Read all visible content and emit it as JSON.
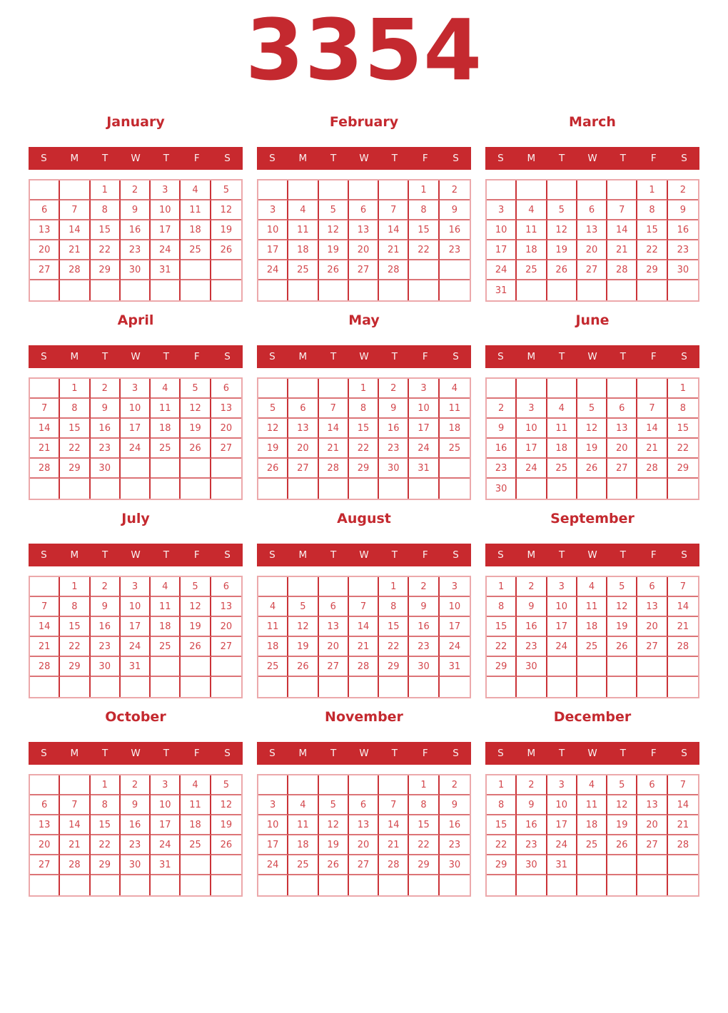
{
  "year": "3354",
  "weekdays": [
    "S",
    "M",
    "T",
    "W",
    "T",
    "F",
    "S"
  ],
  "colors": {
    "accent_red": "#c4292f",
    "header_band_bg": "#c8292e",
    "header_letter": "#faf3f3",
    "day_number": "#d3474c",
    "grid_line_vertical": "#cb3338",
    "grid_line_horizontal": "#dc7477",
    "grid_outer_border": "#eca9ab",
    "page_bg": "#ffffff"
  },
  "months": [
    {
      "name": "January",
      "cells": [
        "",
        "",
        "1",
        "2",
        "3",
        "4",
        "5",
        "6",
        "7",
        "8",
        "9",
        "10",
        "11",
        "12",
        "13",
        "14",
        "15",
        "16",
        "17",
        "18",
        "19",
        "20",
        "21",
        "22",
        "23",
        "24",
        "25",
        "26",
        "27",
        "28",
        "29",
        "30",
        "31",
        "",
        "",
        "",
        "",
        "",
        "",
        "",
        "",
        ""
      ]
    },
    {
      "name": "February",
      "cells": [
        "",
        "",
        "",
        "",
        "",
        "1",
        "2",
        "3",
        "4",
        "5",
        "6",
        "7",
        "8",
        "9",
        "10",
        "11",
        "12",
        "13",
        "14",
        "15",
        "16",
        "17",
        "18",
        "19",
        "20",
        "21",
        "22",
        "23",
        "24",
        "25",
        "26",
        "27",
        "28",
        "",
        "",
        "",
        "",
        "",
        "",
        "",
        "",
        ""
      ]
    },
    {
      "name": "March",
      "cells": [
        "",
        "",
        "",
        "",
        "",
        "1",
        "2",
        "3",
        "4",
        "5",
        "6",
        "7",
        "8",
        "9",
        "10",
        "11",
        "12",
        "13",
        "14",
        "15",
        "16",
        "17",
        "18",
        "19",
        "20",
        "21",
        "22",
        "23",
        "24",
        "25",
        "26",
        "27",
        "28",
        "29",
        "30",
        "31",
        "",
        "",
        "",
        "",
        "",
        ""
      ]
    },
    {
      "name": "April",
      "cells": [
        "",
        "1",
        "2",
        "3",
        "4",
        "5",
        "6",
        "7",
        "8",
        "9",
        "10",
        "11",
        "12",
        "13",
        "14",
        "15",
        "16",
        "17",
        "18",
        "19",
        "20",
        "21",
        "22",
        "23",
        "24",
        "25",
        "26",
        "27",
        "28",
        "29",
        "30",
        "",
        "",
        "",
        "",
        "",
        "",
        "",
        "",
        "",
        "",
        ""
      ]
    },
    {
      "name": "May",
      "cells": [
        "",
        "",
        "",
        "1",
        "2",
        "3",
        "4",
        "5",
        "6",
        "7",
        "8",
        "9",
        "10",
        "11",
        "12",
        "13",
        "14",
        "15",
        "16",
        "17",
        "18",
        "19",
        "20",
        "21",
        "22",
        "23",
        "24",
        "25",
        "26",
        "27",
        "28",
        "29",
        "30",
        "31",
        "",
        "",
        "",
        "",
        "",
        "",
        "",
        ""
      ]
    },
    {
      "name": "June",
      "cells": [
        "",
        "",
        "",
        "",
        "",
        "",
        "1",
        "2",
        "3",
        "4",
        "5",
        "6",
        "7",
        "8",
        "9",
        "10",
        "11",
        "12",
        "13",
        "14",
        "15",
        "16",
        "17",
        "18",
        "19",
        "20",
        "21",
        "22",
        "23",
        "24",
        "25",
        "26",
        "27",
        "28",
        "29",
        "30",
        "",
        "",
        "",
        "",
        "",
        ""
      ]
    },
    {
      "name": "July",
      "cells": [
        "",
        "1",
        "2",
        "3",
        "4",
        "5",
        "6",
        "7",
        "8",
        "9",
        "10",
        "11",
        "12",
        "13",
        "14",
        "15",
        "16",
        "17",
        "18",
        "19",
        "20",
        "21",
        "22",
        "23",
        "24",
        "25",
        "26",
        "27",
        "28",
        "29",
        "30",
        "31",
        "",
        "",
        "",
        "",
        "",
        "",
        "",
        "",
        "",
        ""
      ]
    },
    {
      "name": "August",
      "cells": [
        "",
        "",
        "",
        "",
        "1",
        "2",
        "3",
        "4",
        "5",
        "6",
        "7",
        "8",
        "9",
        "10",
        "11",
        "12",
        "13",
        "14",
        "15",
        "16",
        "17",
        "18",
        "19",
        "20",
        "21",
        "22",
        "23",
        "24",
        "25",
        "26",
        "27",
        "28",
        "29",
        "30",
        "31",
        "",
        "",
        "",
        "",
        "",
        "",
        ""
      ]
    },
    {
      "name": "September",
      "cells": [
        "1",
        "2",
        "3",
        "4",
        "5",
        "6",
        "7",
        "8",
        "9",
        "10",
        "11",
        "12",
        "13",
        "14",
        "15",
        "16",
        "17",
        "18",
        "19",
        "20",
        "21",
        "22",
        "23",
        "24",
        "25",
        "26",
        "27",
        "28",
        "29",
        "30",
        "",
        "",
        "",
        "",
        "",
        "",
        "",
        "",
        "",
        "",
        "",
        ""
      ]
    },
    {
      "name": "October",
      "cells": [
        "",
        "",
        "1",
        "2",
        "3",
        "4",
        "5",
        "6",
        "7",
        "8",
        "9",
        "10",
        "11",
        "12",
        "13",
        "14",
        "15",
        "16",
        "17",
        "18",
        "19",
        "20",
        "21",
        "22",
        "23",
        "24",
        "25",
        "26",
        "27",
        "28",
        "29",
        "30",
        "31",
        "",
        "",
        "",
        "",
        "",
        "",
        "",
        "",
        ""
      ]
    },
    {
      "name": "November",
      "cells": [
        "",
        "",
        "",
        "",
        "",
        "1",
        "2",
        "3",
        "4",
        "5",
        "6",
        "7",
        "8",
        "9",
        "10",
        "11",
        "12",
        "13",
        "14",
        "15",
        "16",
        "17",
        "18",
        "19",
        "20",
        "21",
        "22",
        "23",
        "24",
        "25",
        "26",
        "27",
        "28",
        "29",
        "30",
        "",
        "",
        "",
        "",
        "",
        "",
        ""
      ]
    },
    {
      "name": "December",
      "cells": [
        "1",
        "2",
        "3",
        "4",
        "5",
        "6",
        "7",
        "8",
        "9",
        "10",
        "11",
        "12",
        "13",
        "14",
        "15",
        "16",
        "17",
        "18",
        "19",
        "20",
        "21",
        "22",
        "23",
        "24",
        "25",
        "26",
        "27",
        "28",
        "29",
        "30",
        "31",
        "",
        "",
        "",
        "",
        "",
        "",
        "",
        "",
        "",
        "",
        ""
      ]
    }
  ]
}
